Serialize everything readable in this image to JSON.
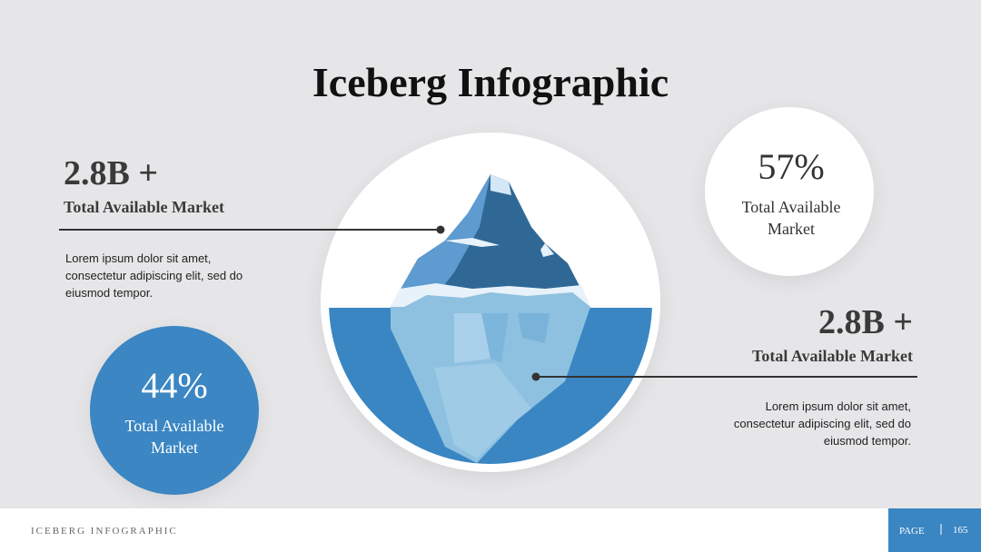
{
  "title": "Iceberg Infographic",
  "left_stat": {
    "value": "2.8B +",
    "label": "Total Available Market",
    "body": [
      "Lorem ipsum dolor sit amet,",
      "consectetur adipiscing elit, sed do",
      "eiusmod tempor."
    ]
  },
  "right_stat": {
    "value": "2.8B +",
    "label": "Total Available Market",
    "body": [
      "Lorem ipsum dolor sit amet,",
      "consectetur adipiscing elit, sed do",
      "eiusmod tempor."
    ]
  },
  "blue_circle": {
    "value": "44%",
    "label": [
      "Total Available",
      "Market"
    ]
  },
  "white_circle": {
    "value": "57%",
    "label": [
      "Total Available",
      "Market"
    ]
  },
  "footer": {
    "title": "ICEBERG INFOGRAPHIC",
    "page_label": "PAGE",
    "page_number": "165"
  }
}
